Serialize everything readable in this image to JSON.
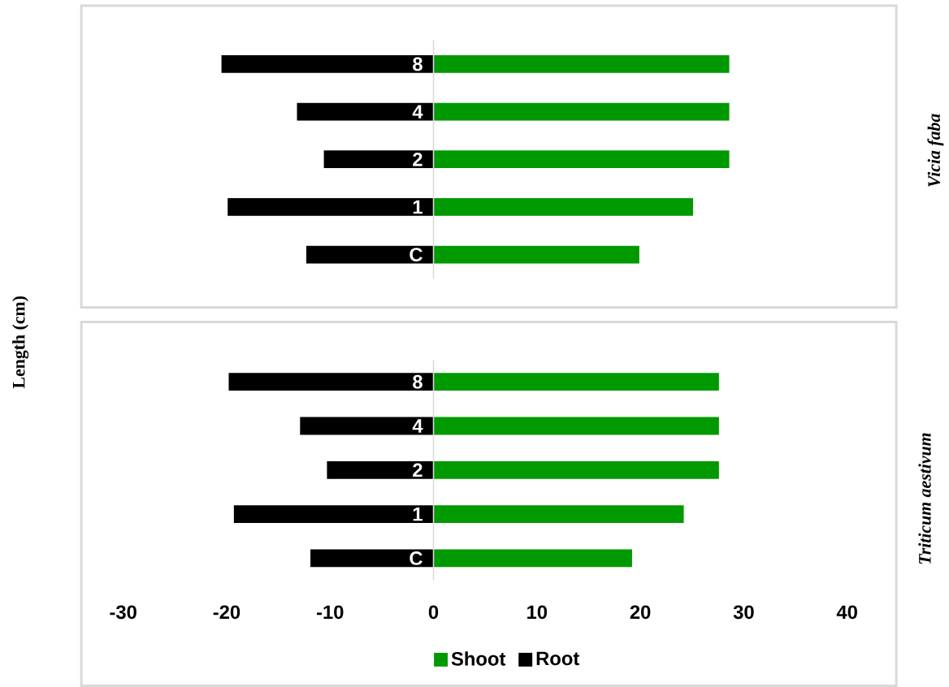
{
  "chart_data": [
    {
      "type": "bar",
      "orientation": "horizontal",
      "stacked": true,
      "y2label": "Vicia faba",
      "categories": [
        "8",
        "4",
        "2",
        "1",
        "C"
      ],
      "xlim": [
        -30,
        40
      ],
      "tick_labels": "y",
      "series": [
        {
          "color": "#009900",
          "values": [
            28.6,
            28.6,
            28.6,
            25.1,
            19.9
          ]
        },
        {
          "color": "#000000",
          "values": [
            -20.5,
            -13.2,
            -10.6,
            -19.9,
            -12.3
          ]
        }
      ]
    },
    {
      "type": "bar",
      "orientation": "horizontal",
      "stacked": true,
      "ylabel": "Length (cm)",
      "y2label": "Triticum aestivum",
      "categories": [
        "8",
        "4",
        "2",
        "1",
        "C"
      ],
      "xlim": [
        -30,
        40
      ],
      "xticks": [
        -30,
        -20,
        -10,
        0,
        10,
        20,
        30,
        40
      ],
      "legend": "bottom",
      "series": [
        {
          "name": "Shoot",
          "color": "#009900",
          "values": [
            27.6,
            27.6,
            27.6,
            24.2,
            19.2
          ]
        },
        {
          "name": "Root",
          "color": "#000000",
          "values": [
            -19.8,
            -12.9,
            -10.3,
            -19.3,
            -11.9
          ]
        }
      ]
    }
  ]
}
